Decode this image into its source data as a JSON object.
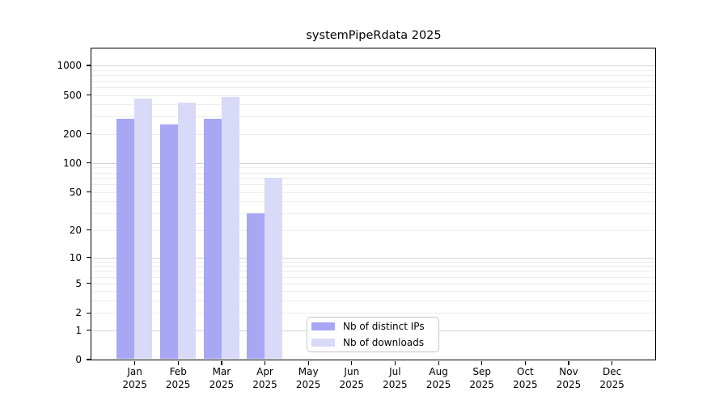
{
  "chart_data": {
    "type": "bar",
    "title": "systemPipeRdata 2025",
    "year_label": "2025",
    "categories": [
      "Jan",
      "Feb",
      "Mar",
      "Apr",
      "May",
      "Jun",
      "Jul",
      "Aug",
      "Sep",
      "Oct",
      "Nov",
      "Dec"
    ],
    "series": [
      {
        "name": "Nb of distinct IPs",
        "color": "#a7a7f4",
        "values": [
          285,
          250,
          285,
          30,
          0,
          0,
          0,
          0,
          0,
          0,
          0,
          0
        ]
      },
      {
        "name": "Nb of downloads",
        "color": "#d9d9f8",
        "values": [
          455,
          420,
          478,
          70,
          0,
          0,
          0,
          0,
          0,
          0,
          0,
          0
        ]
      }
    ],
    "xlabel": "",
    "ylabel": "",
    "y_scale": "log1p",
    "y_ticks": [
      0,
      1,
      2,
      5,
      10,
      20,
      50,
      100,
      200,
      500,
      1000
    ],
    "ylim": [
      0,
      1490
    ],
    "grid": "horizontal",
    "legend_position": "lower-center-inside"
  },
  "colors": {
    "background": "#ffffff",
    "axis": "#000000",
    "grid_major": "#d2d2d2",
    "grid_minor": "#ededed",
    "text": "#000000",
    "legend_border": "#c8c8c8"
  }
}
